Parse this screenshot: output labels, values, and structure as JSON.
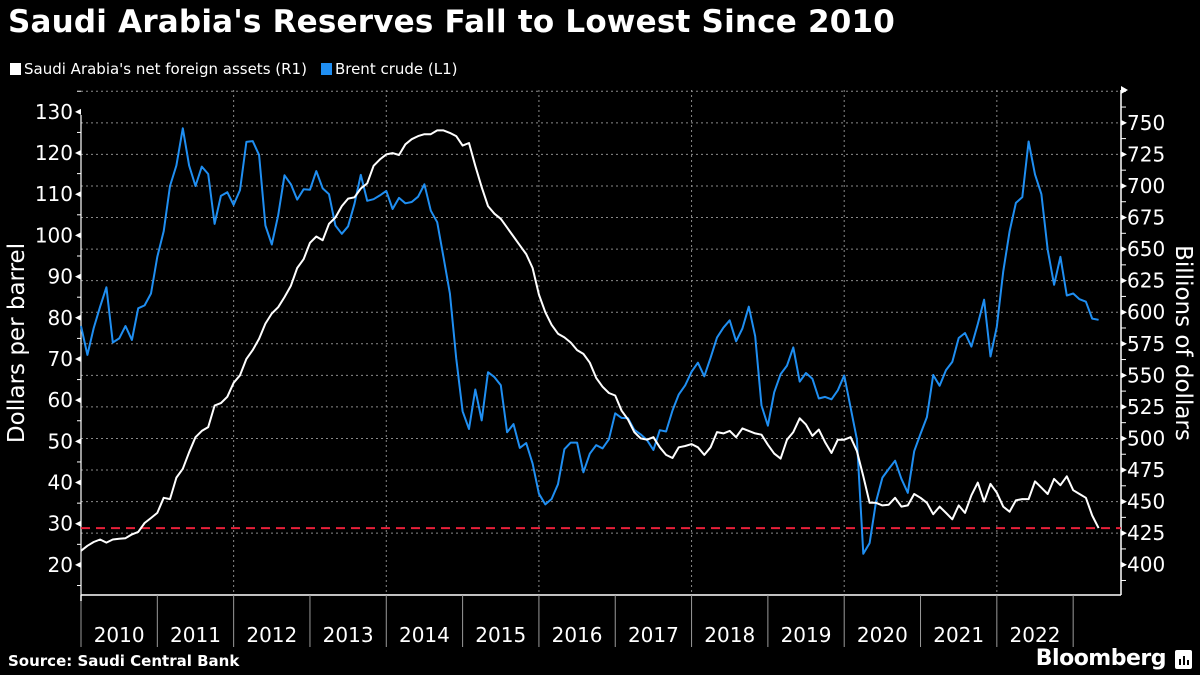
{
  "chart_data": {
    "type": "line",
    "title": "Saudi Arabia's Reserves Fall to Lowest Since 2010",
    "source": "Source: Saudi Central Bank",
    "brand": "Bloomberg",
    "x_start_month": "2009-12",
    "x_frequency": "monthly",
    "x_tick_labels": [
      "2010",
      "2011",
      "2012",
      "2013",
      "2014",
      "2015",
      "2016",
      "2017",
      "2018",
      "2019",
      "2020",
      "2021",
      "2022"
    ],
    "ylabel_left": "Dollars per barrel",
    "ylabel_right": "Billions of dollars",
    "ylim_left": [
      12.7,
      135.3
    ],
    "ylim_right": [
      376,
      776
    ],
    "yticks_left": [
      20,
      30,
      40,
      50,
      60,
      70,
      80,
      90,
      100,
      110,
      120,
      130
    ],
    "yticks_right": [
      400,
      425,
      450,
      475,
      500,
      525,
      550,
      575,
      600,
      625,
      650,
      675,
      700,
      725,
      750
    ],
    "grid": true,
    "legend_position": "top-left",
    "reference_line": {
      "axis": "right",
      "value": 429,
      "style": "dashed",
      "color": "#e8203a"
    },
    "series": [
      {
        "name": "Saudi Arabia's net foreign assets (R1)",
        "axis": "right",
        "color": "#ffffff",
        "values": [
          411,
          415,
          418,
          420,
          417.5,
          420,
          420.5,
          421,
          424,
          426,
          433,
          437,
          441,
          453,
          452,
          469,
          476,
          489,
          501,
          506,
          509,
          526,
          528,
          533,
          544,
          550,
          563,
          570,
          579,
          591,
          599,
          604,
          612,
          621,
          635,
          642,
          655,
          660,
          657,
          670,
          675,
          684,
          690,
          691,
          698,
          702,
          716,
          721,
          725,
          726,
          724.5,
          733,
          737,
          739.5,
          741,
          741,
          744,
          744,
          742,
          739.5,
          732,
          734,
          716,
          699,
          684,
          678,
          674,
          667,
          660,
          653,
          646,
          635,
          614,
          600,
          590,
          583,
          580,
          576,
          570,
          567,
          560,
          548,
          541,
          536,
          534,
          522,
          515,
          505,
          500,
          499,
          501,
          493,
          487,
          484.5,
          493,
          494,
          495.5,
          493,
          487,
          493,
          505,
          504,
          506,
          501,
          508,
          506,
          504,
          503,
          495,
          488,
          484,
          499,
          505,
          516,
          511,
          502,
          507,
          497,
          488.5,
          499,
          499,
          501,
          490,
          470,
          449,
          449,
          447,
          447.5,
          453,
          446,
          447,
          456,
          453,
          449,
          440,
          446,
          441,
          436,
          447,
          441,
          455,
          465,
          450,
          464,
          457,
          446,
          442,
          451,
          452,
          452,
          466,
          461,
          456,
          468,
          463,
          470,
          459,
          456,
          453,
          439,
          429
        ]
      },
      {
        "name": "Brent crude (L1)",
        "axis": "left",
        "color": "#1f8ef1",
        "values": [
          78,
          71,
          77.5,
          82.7,
          87.4,
          74,
          75,
          78,
          74.6,
          82.3,
          83,
          85.9,
          94.8,
          101,
          112,
          117,
          126,
          117,
          112,
          116.7,
          114.9,
          102.8,
          109.6,
          110.5,
          107.4,
          111,
          122.7,
          122.9,
          119.5,
          102.4,
          97.8,
          104.9,
          114.6,
          112.4,
          108.7,
          111.2,
          111.1,
          115.6,
          111.4,
          110,
          102.4,
          100.4,
          102.2,
          107.7,
          114.7,
          108.4,
          108.8,
          109.7,
          110.8,
          106.4,
          109.1,
          107.8,
          108.1,
          109.4,
          112.4,
          106,
          103.2,
          94.7,
          85.9,
          70.2,
          57.3,
          53,
          62.6,
          55.1,
          66.8,
          65.6,
          63.6,
          52.2,
          54.2,
          48.4,
          49.6,
          44.6,
          37.3,
          34.7,
          36,
          39.6,
          48.1,
          49.7,
          49.7,
          42.5,
          47,
          49.1,
          48.3,
          50.5,
          56.8,
          55.7,
          55.6,
          52.8,
          51.7,
          50.3,
          47.9,
          52.7,
          52.4,
          57.5,
          61.4,
          63.6,
          66.9,
          69.1,
          65.8,
          70.3,
          75.2,
          77.6,
          79.4,
          74.3,
          77.4,
          82.7,
          75.5,
          58.7,
          53.8,
          61.9,
          66.3,
          68.4,
          72.8,
          64.5,
          66.6,
          65.2,
          60.4,
          60.8,
          60.2,
          62.4,
          66,
          58.2,
          50.5,
          22.7,
          25.3,
          35.3,
          41.2,
          43.3,
          45.3,
          40.9,
          37.5,
          47.6,
          51.8,
          55.9,
          66.1,
          63.5,
          67.3,
          69.3,
          75.1,
          76.3,
          73,
          78.5,
          84.4,
          70.6,
          77.8,
          91.2,
          101,
          107.9,
          109.3,
          122.8,
          114.8,
          110,
          96.5,
          88,
          94.8,
          85.4,
          85.9,
          84.5,
          83.9,
          79.8,
          79.5
        ]
      }
    ]
  }
}
